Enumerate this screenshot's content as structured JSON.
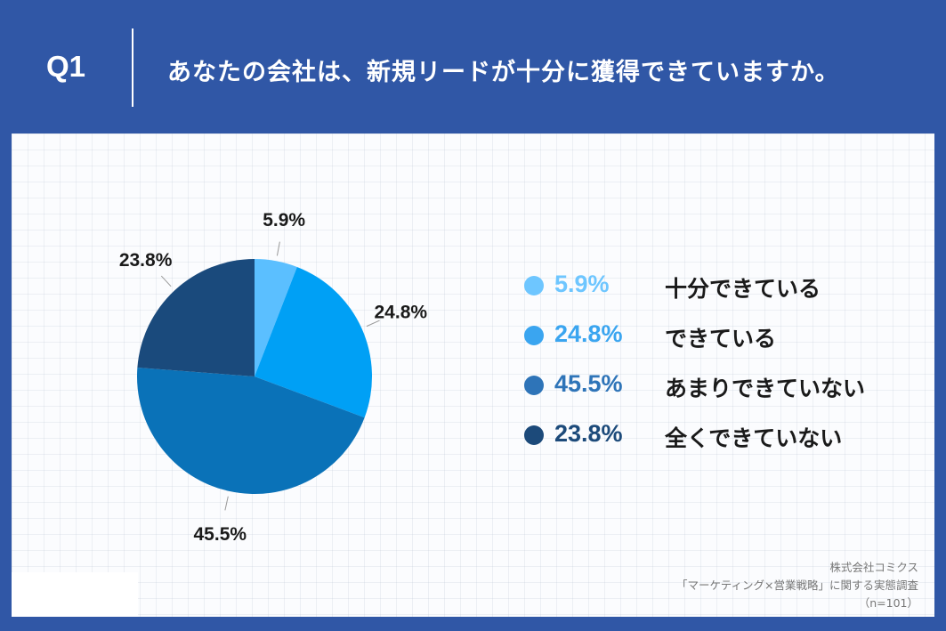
{
  "header": {
    "question_id": "Q1",
    "question_text": "あなたの会社は、新規リードが十分に獲得できていますか。"
  },
  "chart_data": {
    "type": "pie",
    "categories": [
      "十分できている",
      "できている",
      "あまりできていない",
      "全くできていない"
    ],
    "values": [
      5.9,
      24.8,
      45.5,
      23.8
    ],
    "labels": [
      "5.9%",
      "24.8%",
      "45.5%",
      "23.8%"
    ],
    "colors": [
      "#5bbfff",
      "#00a0f5",
      "#0a72b8",
      "#1a4a7c"
    ],
    "legend_colors": [
      "#6ec6ff",
      "#3aa5f0",
      "#2e74b8",
      "#1c4a7a"
    ],
    "legend_placement": "right"
  },
  "source": {
    "line1": "株式会社コミクス",
    "line2": "「マーケティング×営業戦略」に関する実態調査",
    "line3": "（n=101）"
  }
}
